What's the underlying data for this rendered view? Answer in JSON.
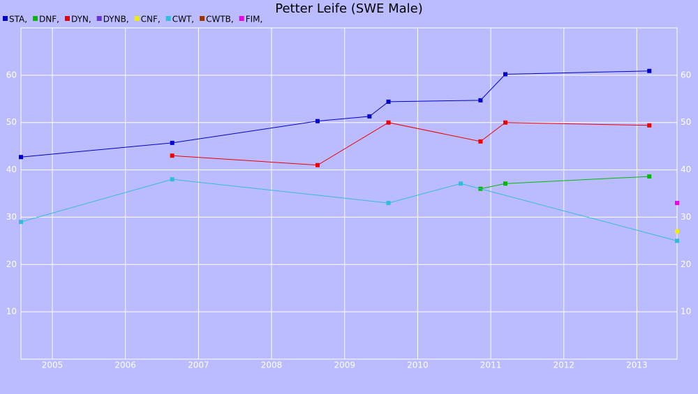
{
  "chart_data": {
    "type": "line",
    "title": "Petter Leife (SWE Male)",
    "xlim": [
      2005.07,
      2014.05
    ],
    "ylim": [
      0,
      70
    ],
    "xticks": [
      {
        "value": 2005.5,
        "label": "2005"
      },
      {
        "value": 2006.5,
        "label": "2006"
      },
      {
        "value": 2007.5,
        "label": "2007"
      },
      {
        "value": 2008.5,
        "label": "2008"
      },
      {
        "value": 2009.5,
        "label": "2009"
      },
      {
        "value": 2010.5,
        "label": "2010"
      },
      {
        "value": 2011.5,
        "label": "2011"
      },
      {
        "value": 2012.5,
        "label": "2012"
      },
      {
        "value": 2013.5,
        "label": "2013"
      }
    ],
    "yticks": [
      10,
      20,
      30,
      40,
      50,
      60
    ],
    "grid": true,
    "series": [
      {
        "name": "STA,",
        "color": "#0000cc",
        "x": [
          2005.07,
          2007.14,
          2009.13,
          2009.84,
          2010.1,
          2011.36,
          2011.7,
          2013.67
        ],
        "values": [
          42.7,
          45.7,
          50.3,
          51.3,
          54.4,
          54.7,
          60.2,
          60.9
        ]
      },
      {
        "name": "DNF,",
        "color": "#00bb00",
        "x": [
          2011.36,
          2011.7,
          2013.67
        ],
        "values": [
          36.0,
          37.1,
          38.6
        ]
      },
      {
        "name": "DYN,",
        "color": "#ee0000",
        "x": [
          2007.14,
          2009.13,
          2010.1,
          2011.36,
          2011.7,
          2013.67
        ],
        "values": [
          43.0,
          41.0,
          50.0,
          46.0,
          50.0,
          49.4
        ]
      },
      {
        "name": "DYNB,",
        "color": "#6633dd",
        "x": [],
        "values": []
      },
      {
        "name": "CNF,",
        "color": "#eeee00",
        "x": [
          2014.05
        ],
        "values": [
          27.0
        ]
      },
      {
        "name": "CWT,",
        "color": "#33bbdd",
        "x": [
          2005.07,
          2007.14,
          2010.1,
          2011.09,
          2014.05
        ],
        "values": [
          29.0,
          38.0,
          33.0,
          37.1,
          25.0
        ]
      },
      {
        "name": "CWTB,",
        "color": "#993300",
        "x": [],
        "values": []
      },
      {
        "name": "FIM,",
        "color": "#ee00ee",
        "x": [
          2014.05
        ],
        "values": [
          33.0
        ]
      }
    ]
  }
}
